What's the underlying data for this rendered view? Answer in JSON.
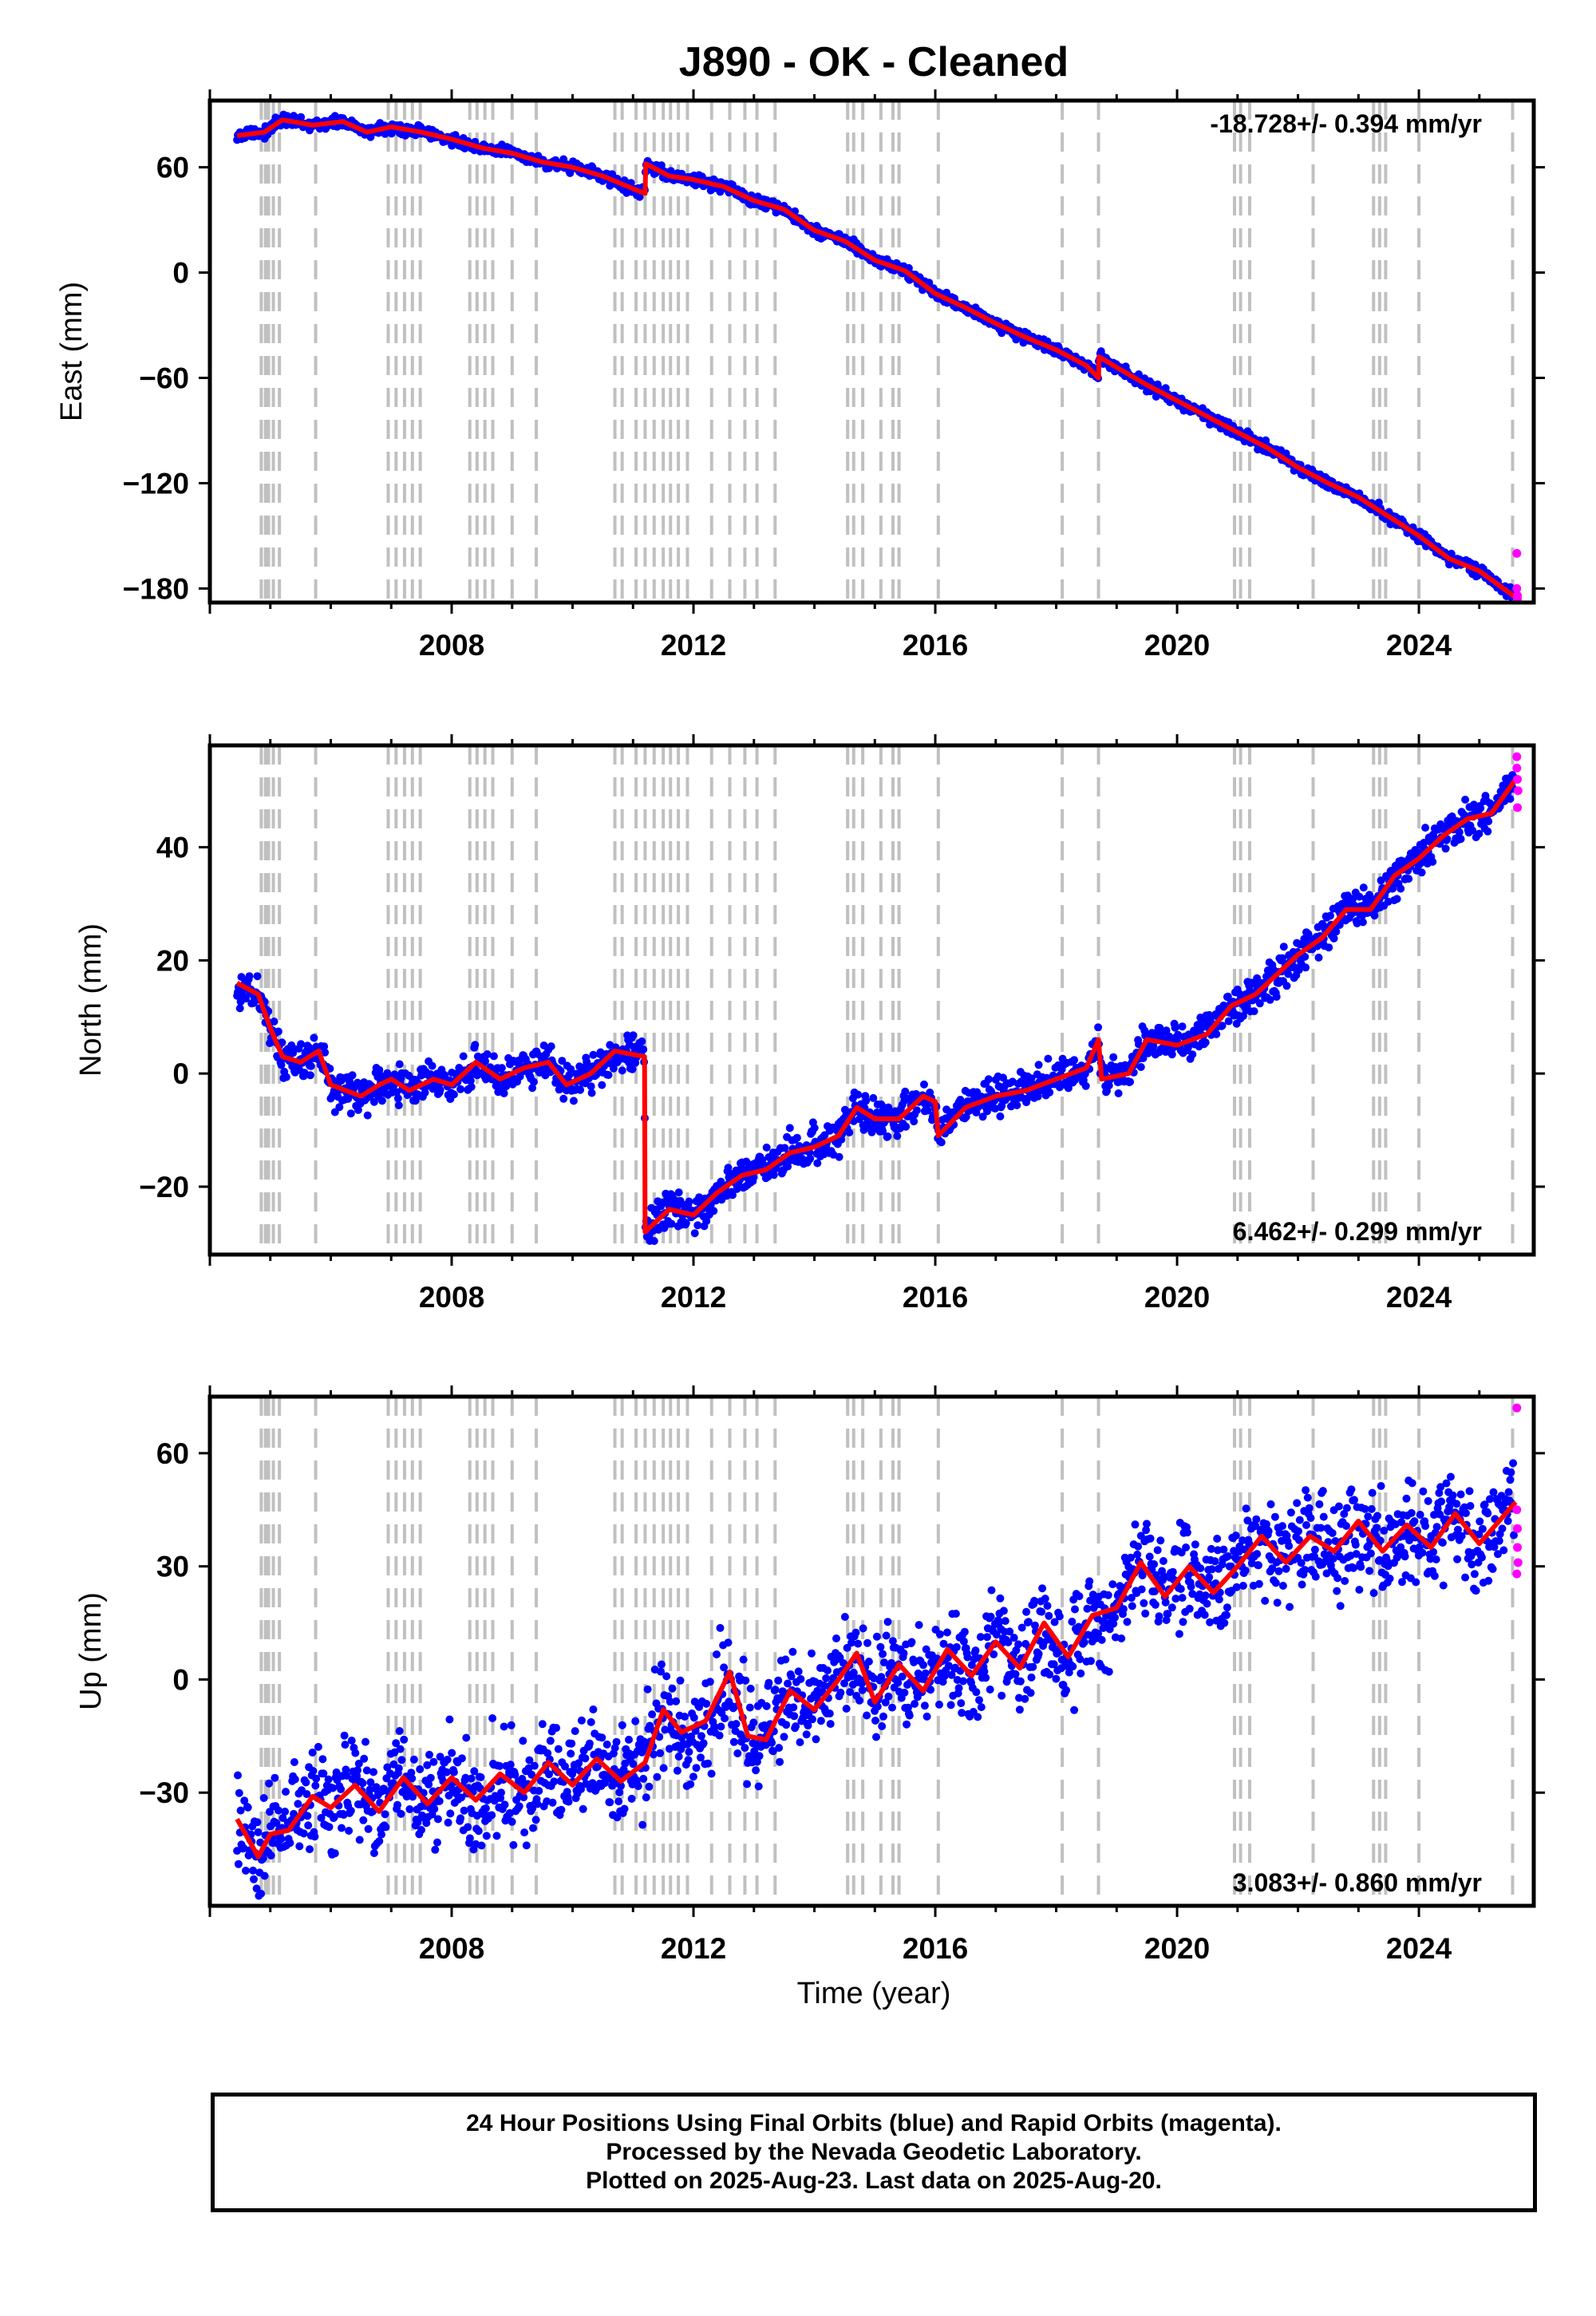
{
  "title": "J890  - OK - Cleaned",
  "xlabel": "Time (year)",
  "colors": {
    "final": "#0000ff",
    "rapid": "#ff00ff",
    "model": "#ff0000",
    "steps": "#c0c0c0"
  },
  "x_ticks": [
    "2008",
    "2012",
    "2016",
    "2020",
    "2024"
  ],
  "footer": {
    "line1": "24 Hour Positions Using Final Orbits (blue) and Rapid Orbits (magenta).",
    "line2": "Processed by the Nevada Geodetic Laboratory.",
    "line3": "Plotted on 2025-Aug-23. Last data on 2025-Aug-20."
  },
  "chart_data": [
    {
      "type": "scatter",
      "panel": "east",
      "ylabel": "East (mm)",
      "rate_text": "-18.728+/- 0.394 mm/yr",
      "rate_position": "top-right",
      "xlim": [
        2004.0,
        2025.9
      ],
      "ylim": [
        -188,
        98
      ],
      "y_ticks": [
        60,
        0,
        -60,
        -120,
        -180
      ],
      "y_tick_labels": [
        "60",
        "0",
        "−60",
        "−120",
        "−180"
      ],
      "model_line": [
        [
          2004.45,
          78
        ],
        [
          2004.9,
          80
        ],
        [
          2005.2,
          87
        ],
        [
          2005.7,
          84
        ],
        [
          2006.2,
          86
        ],
        [
          2006.6,
          80
        ],
        [
          2007.0,
          83
        ],
        [
          2007.5,
          80
        ],
        [
          2008.0,
          76
        ],
        [
          2008.5,
          71
        ],
        [
          2009.0,
          68
        ],
        [
          2009.5,
          63
        ],
        [
          2010.0,
          60
        ],
        [
          2010.5,
          55
        ],
        [
          2011.2,
          45
        ],
        [
          2011.21,
          62
        ],
        [
          2011.6,
          55
        ],
        [
          2012.0,
          53
        ],
        [
          2012.5,
          49
        ],
        [
          2013.0,
          41
        ],
        [
          2013.5,
          36
        ],
        [
          2014.0,
          24
        ],
        [
          2014.5,
          18
        ],
        [
          2015.0,
          7
        ],
        [
          2015.5,
          1
        ],
        [
          2016.0,
          -12
        ],
        [
          2016.5,
          -20
        ],
        [
          2017.0,
          -29
        ],
        [
          2017.5,
          -37
        ],
        [
          2018.0,
          -44
        ],
        [
          2018.5,
          -53
        ],
        [
          2018.7,
          -60
        ],
        [
          2018.71,
          -48
        ],
        [
          2019.0,
          -54
        ],
        [
          2019.5,
          -64
        ],
        [
          2020.0,
          -73
        ],
        [
          2020.5,
          -82
        ],
        [
          2021.0,
          -91
        ],
        [
          2021.5,
          -100
        ],
        [
          2022.0,
          -111
        ],
        [
          2022.5,
          -120
        ],
        [
          2023.0,
          -128
        ],
        [
          2023.5,
          -139
        ],
        [
          2024.0,
          -150
        ],
        [
          2024.5,
          -163
        ],
        [
          2025.0,
          -170
        ],
        [
          2025.6,
          -185
        ]
      ],
      "rapid_points": [
        [
          2025.62,
          -160
        ],
        [
          2025.62,
          -180
        ],
        [
          2025.63,
          -184
        ],
        [
          2025.63,
          -186
        ]
      ]
    },
    {
      "type": "scatter",
      "panel": "north",
      "ylabel": "North (mm)",
      "rate_text": "6.462+/- 0.299 mm/yr",
      "rate_position": "bottom-right",
      "xlim": [
        2004.0,
        2025.9
      ],
      "ylim": [
        -32,
        58
      ],
      "y_ticks": [
        40,
        20,
        0,
        -20
      ],
      "y_tick_labels": [
        "40",
        "20",
        "0",
        "−20"
      ],
      "model_line": [
        [
          2004.45,
          16
        ],
        [
          2004.8,
          14
        ],
        [
          2005.0,
          8
        ],
        [
          2005.2,
          3
        ],
        [
          2005.5,
          2
        ],
        [
          2005.8,
          4
        ],
        [
          2006.0,
          -2
        ],
        [
          2006.5,
          -4
        ],
        [
          2006.8,
          -2
        ],
        [
          2007.0,
          -1
        ],
        [
          2007.3,
          -3
        ],
        [
          2007.7,
          -1
        ],
        [
          2008.0,
          -2
        ],
        [
          2008.4,
          2
        ],
        [
          2008.8,
          -1
        ],
        [
          2009.2,
          1
        ],
        [
          2009.6,
          2
        ],
        [
          2009.9,
          -2
        ],
        [
          2010.3,
          0
        ],
        [
          2010.7,
          4
        ],
        [
          2011.19,
          3
        ],
        [
          2011.2,
          -28
        ],
        [
          2011.6,
          -24
        ],
        [
          2012.0,
          -25
        ],
        [
          2012.4,
          -21
        ],
        [
          2012.8,
          -18
        ],
        [
          2013.2,
          -17
        ],
        [
          2013.6,
          -14
        ],
        [
          2014.0,
          -13
        ],
        [
          2014.4,
          -11
        ],
        [
          2014.7,
          -6
        ],
        [
          2015.0,
          -8
        ],
        [
          2015.4,
          -8
        ],
        [
          2015.8,
          -4
        ],
        [
          2016.0,
          -5
        ],
        [
          2016.05,
          -11
        ],
        [
          2016.5,
          -6
        ],
        [
          2017.0,
          -4
        ],
        [
          2017.5,
          -3
        ],
        [
          2018.0,
          -1
        ],
        [
          2018.5,
          1
        ],
        [
          2018.7,
          6
        ],
        [
          2018.75,
          -1
        ],
        [
          2019.2,
          0
        ],
        [
          2019.5,
          6
        ],
        [
          2020.0,
          5
        ],
        [
          2020.5,
          7
        ],
        [
          2020.9,
          12
        ],
        [
          2021.3,
          14
        ],
        [
          2021.7,
          18
        ],
        [
          2022.0,
          21
        ],
        [
          2022.4,
          24
        ],
        [
          2022.8,
          29
        ],
        [
          2023.2,
          29
        ],
        [
          2023.6,
          35
        ],
        [
          2024.0,
          38
        ],
        [
          2024.4,
          42
        ],
        [
          2024.8,
          45
        ],
        [
          2025.2,
          46
        ],
        [
          2025.6,
          52
        ]
      ],
      "rapid_points": [
        [
          2025.62,
          56
        ],
        [
          2025.62,
          54
        ],
        [
          2025.63,
          52
        ],
        [
          2025.63,
          47
        ],
        [
          2025.64,
          50
        ]
      ]
    },
    {
      "type": "scatter",
      "panel": "up",
      "ylabel": "Up (mm)",
      "rate_text": "3.083+/- 0.860 mm/yr",
      "rate_position": "bottom-right",
      "xlim": [
        2004.0,
        2025.9
      ],
      "ylim": [
        -60,
        75
      ],
      "y_ticks": [
        60,
        30,
        0,
        -30
      ],
      "y_tick_labels": [
        "60",
        "30",
        "0",
        "−30"
      ],
      "model_line": [
        [
          2004.45,
          -37
        ],
        [
          2004.8,
          -47
        ],
        [
          2005.0,
          -41
        ],
        [
          2005.3,
          -40
        ],
        [
          2005.7,
          -31
        ],
        [
          2006.0,
          -34
        ],
        [
          2006.4,
          -28
        ],
        [
          2006.8,
          -35
        ],
        [
          2007.2,
          -26
        ],
        [
          2007.6,
          -33
        ],
        [
          2008.0,
          -26
        ],
        [
          2008.4,
          -32
        ],
        [
          2008.8,
          -25
        ],
        [
          2009.2,
          -30
        ],
        [
          2009.6,
          -22
        ],
        [
          2010.0,
          -28
        ],
        [
          2010.4,
          -21
        ],
        [
          2010.8,
          -27
        ],
        [
          2011.2,
          -22
        ],
        [
          2011.5,
          -8
        ],
        [
          2011.8,
          -14
        ],
        [
          2012.2,
          -11
        ],
        [
          2012.6,
          2
        ],
        [
          2012.9,
          -15
        ],
        [
          2013.2,
          -16
        ],
        [
          2013.6,
          -3
        ],
        [
          2014.0,
          -8
        ],
        [
          2014.4,
          0
        ],
        [
          2014.7,
          7
        ],
        [
          2015.0,
          -6
        ],
        [
          2015.4,
          4
        ],
        [
          2015.8,
          -3
        ],
        [
          2016.2,
          8
        ],
        [
          2016.6,
          1
        ],
        [
          2017.0,
          10
        ],
        [
          2017.4,
          3
        ],
        [
          2017.8,
          15
        ],
        [
          2018.2,
          6
        ],
        [
          2018.6,
          17
        ],
        [
          2019.0,
          19
        ],
        [
          2019.4,
          31
        ],
        [
          2019.8,
          22
        ],
        [
          2020.2,
          30
        ],
        [
          2020.6,
          23
        ],
        [
          2021.0,
          30
        ],
        [
          2021.4,
          38
        ],
        [
          2021.8,
          31
        ],
        [
          2022.2,
          38
        ],
        [
          2022.6,
          34
        ],
        [
          2023.0,
          42
        ],
        [
          2023.4,
          34
        ],
        [
          2023.8,
          41
        ],
        [
          2024.2,
          35
        ],
        [
          2024.6,
          44
        ],
        [
          2025.0,
          36
        ],
        [
          2025.6,
          47
        ]
      ],
      "rapid_points": [
        [
          2025.62,
          72
        ],
        [
          2025.62,
          45
        ],
        [
          2025.63,
          40
        ],
        [
          2025.63,
          35
        ],
        [
          2025.64,
          31
        ],
        [
          2025.62,
          28
        ]
      ]
    }
  ]
}
